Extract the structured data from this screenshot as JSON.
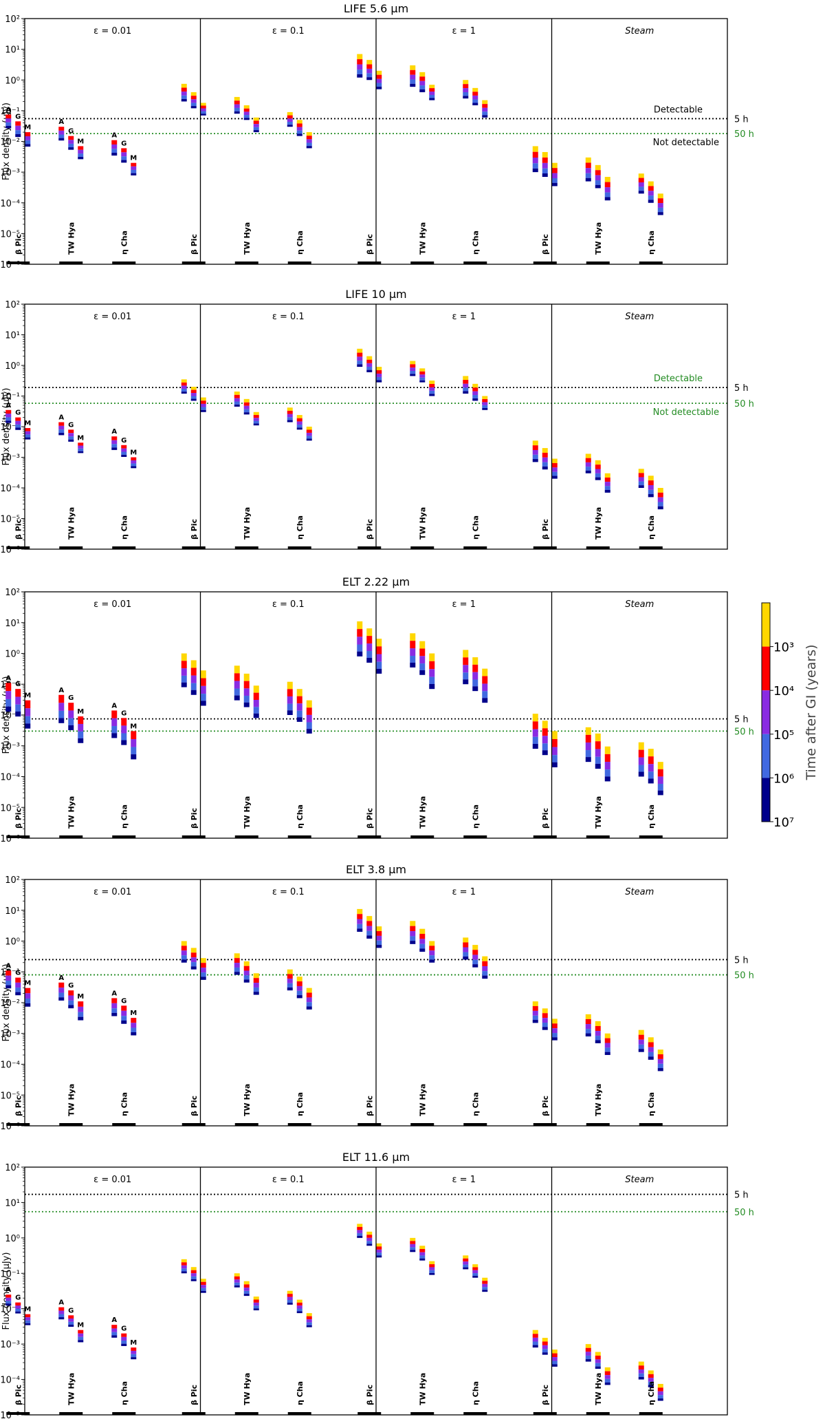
{
  "figure": {
    "ylabel": "Flux density (μJy)",
    "colorbar": {
      "label": "Time after GI (years)",
      "ticks": [
        "10³",
        "10⁴",
        "10⁵",
        "10⁶",
        "10⁷"
      ],
      "bands": [
        {
          "name": "< 10^3",
          "color": "#FFD700"
        },
        {
          "name": "10^3-10^4",
          "color": "#FF0000"
        },
        {
          "name": "10^4-10^5",
          "color": "#8A2BE2"
        },
        {
          "name": "10^5-10^6",
          "color": "#4169E1"
        },
        {
          "name": "10^6-10^7",
          "color": "#00008B"
        }
      ]
    },
    "column_titles": [
      "ε = 0.01",
      "ε = 0.1",
      "ε = 1",
      "Steam"
    ],
    "groups": [
      "β Pic",
      "TW Hya",
      "η Cha"
    ],
    "star_types": [
      "A",
      "G",
      "M"
    ]
  },
  "chart_data": [
    {
      "type": "bar",
      "title": "LIFE 5.6 μm",
      "ylim_exp": [
        -6,
        2
      ],
      "yticks": [
        "10⁻⁶",
        "10⁻⁵",
        "10⁻⁴",
        "10⁻³",
        "10⁻²",
        "10⁻¹",
        "10⁰",
        "10¹",
        "10²"
      ],
      "thresholds": [
        {
          "label": "5 h",
          "value": 0.055,
          "color": "#000000"
        },
        {
          "label": "50 h",
          "value": 0.018,
          "color": "#228B22"
        }
      ],
      "annotations": [
        "Detectable",
        "Not detectable"
      ],
      "annotation_color": "#000000",
      "columns": [
        [
          [
            0.075,
            0.02
          ],
          [
            0.045,
            0.01
          ],
          [
            0.02,
            0.005
          ],
          [
            0.03,
            0.008
          ],
          [
            0.015,
            0.004
          ],
          [
            0.007,
            0.002
          ],
          [
            0.011,
            0.0025
          ],
          [
            0.006,
            0.0015
          ],
          [
            0.002,
            0.0006
          ]
        ],
        [
          [
            0.75,
            0.2
          ],
          [
            0.4,
            0.12
          ],
          [
            0.18,
            0.07
          ],
          [
            0.28,
            0.08
          ],
          [
            0.15,
            0.05
          ],
          [
            0.06,
            0.02
          ],
          [
            0.09,
            0.03
          ],
          [
            0.05,
            0.015
          ],
          [
            0.02,
            0.006
          ]
        ],
        [
          [
            7,
            1.2
          ],
          [
            4.5,
            1
          ],
          [
            2,
            0.5
          ],
          [
            3,
            0.6
          ],
          [
            1.8,
            0.4
          ],
          [
            0.7,
            0.22
          ],
          [
            1,
            0.25
          ],
          [
            0.55,
            0.15
          ],
          [
            0.22,
            0.06
          ]
        ],
        [
          [
            0.007,
            0.001
          ],
          [
            0.0045,
            0.0007
          ],
          [
            0.002,
            0.00035
          ],
          [
            0.003,
            0.0005
          ],
          [
            0.0017,
            0.0003
          ],
          [
            0.0007,
            0.00012
          ],
          [
            0.0009,
            0.0002
          ],
          [
            0.0005,
            0.0001
          ],
          [
            0.0002,
            4e-05
          ]
        ]
      ]
    },
    {
      "type": "bar",
      "title": "LIFE 10 μm",
      "ylim_exp": [
        -6,
        2
      ],
      "yticks": [
        "10⁻⁶",
        "10⁻⁵",
        "10⁻⁴",
        "10⁻³",
        "10⁻²",
        "10⁻¹",
        "10⁰",
        "10¹",
        "10²"
      ],
      "thresholds": [
        {
          "label": "5 h",
          "value": 0.19,
          "color": "#000000"
        },
        {
          "label": "50 h",
          "value": 0.058,
          "color": "#228B22"
        }
      ],
      "annotations": [
        "Detectable",
        "Not detectable"
      ],
      "annotation_color": "#228B22",
      "columns": [
        [
          [
            0.035,
            0.01
          ],
          [
            0.02,
            0.006
          ],
          [
            0.009,
            0.003
          ],
          [
            0.014,
            0.004
          ],
          [
            0.008,
            0.0025
          ],
          [
            0.003,
            0.0011
          ],
          [
            0.0048,
            0.0013
          ],
          [
            0.0025,
            0.0008
          ],
          [
            0.001,
            0.00035
          ]
        ],
        [
          [
            0.35,
            0.12
          ],
          [
            0.2,
            0.07
          ],
          [
            0.09,
            0.03
          ],
          [
            0.14,
            0.045
          ],
          [
            0.08,
            0.025
          ],
          [
            0.03,
            0.011
          ],
          [
            0.042,
            0.014
          ],
          [
            0.024,
            0.008
          ],
          [
            0.01,
            0.0035
          ]
        ],
        [
          [
            3.5,
            0.9
          ],
          [
            2,
            0.6
          ],
          [
            0.9,
            0.28
          ],
          [
            1.4,
            0.45
          ],
          [
            0.8,
            0.28
          ],
          [
            0.32,
            0.1
          ],
          [
            0.45,
            0.12
          ],
          [
            0.25,
            0.07
          ],
          [
            0.1,
            0.035
          ]
        ],
        [
          [
            0.0035,
            0.0007
          ],
          [
            0.002,
            0.0004
          ],
          [
            0.0009,
            0.0002
          ],
          [
            0.0013,
            0.0003
          ],
          [
            0.0008,
            0.00018
          ],
          [
            0.0003,
            7e-05
          ],
          [
            0.00042,
            0.0001
          ],
          [
            0.00025,
            5e-05
          ],
          [
            0.0001,
            2e-05
          ]
        ]
      ]
    },
    {
      "type": "bar",
      "title": "ELT 2.22 μm",
      "ylim_exp": [
        -6,
        2
      ],
      "yticks": [
        "10⁻⁶",
        "10⁻⁵",
        "10⁻⁴",
        "10⁻³",
        "10⁻²",
        "10⁻¹",
        "10⁰",
        "10¹",
        "10²"
      ],
      "thresholds": [
        {
          "label": "5 h",
          "value": 0.0075,
          "color": "#000000"
        },
        {
          "label": "50 h",
          "value": 0.003,
          "color": "#228B22"
        }
      ],
      "annotations": [],
      "annotation_color": "#000000",
      "columns": [
        [
          [
            0.11,
            0.007
          ],
          [
            0.07,
            0.005
          ],
          [
            0.03,
            0.002
          ],
          [
            0.045,
            0.003
          ],
          [
            0.025,
            0.0018
          ],
          [
            0.009,
            0.0007
          ],
          [
            0.014,
            0.001
          ],
          [
            0.008,
            0.0006
          ],
          [
            0.003,
            0.0002
          ]
        ],
        [
          [
            1,
            0.08
          ],
          [
            0.6,
            0.045
          ],
          [
            0.28,
            0.02
          ],
          [
            0.4,
            0.03
          ],
          [
            0.22,
            0.018
          ],
          [
            0.09,
            0.008
          ],
          [
            0.12,
            0.01
          ],
          [
            0.07,
            0.006
          ],
          [
            0.03,
            0.0025
          ]
        ],
        [
          [
            11,
            0.8
          ],
          [
            6.5,
            0.5
          ],
          [
            3,
            0.22
          ],
          [
            4.5,
            0.35
          ],
          [
            2.5,
            0.2
          ],
          [
            1,
            0.07
          ],
          [
            1.3,
            0.1
          ],
          [
            0.75,
            0.06
          ],
          [
            0.32,
            0.025
          ]
        ],
        [
          [
            0.011,
            0.0008
          ],
          [
            0.0065,
            0.0005
          ],
          [
            0.003,
            0.0002
          ],
          [
            0.004,
            0.0003
          ],
          [
            0.0025,
            0.00018
          ],
          [
            0.00095,
            7e-05
          ],
          [
            0.0013,
            0.0001
          ],
          [
            0.0008,
            6e-05
          ],
          [
            0.0003,
            2.5e-05
          ]
        ]
      ]
    },
    {
      "type": "bar",
      "title": "ELT 3.8 μm",
      "ylim_exp": [
        -6,
        2
      ],
      "yticks": [
        "10⁻⁶",
        "10⁻⁵",
        "10⁻⁴",
        "10⁻³",
        "10⁻²",
        "10⁻¹",
        "10⁰",
        "10¹",
        "10²"
      ],
      "thresholds": [
        {
          "label": "5 h",
          "value": 0.25,
          "color": "#000000"
        },
        {
          "label": "50 h",
          "value": 0.08,
          "color": "#228B22"
        }
      ],
      "annotations": [],
      "annotation_color": "#000000",
      "columns": [
        [
          [
            0.11,
            0.02
          ],
          [
            0.065,
            0.012
          ],
          [
            0.03,
            0.005
          ],
          [
            0.045,
            0.008
          ],
          [
            0.025,
            0.0045
          ],
          [
            0.011,
            0.0018
          ],
          [
            0.014,
            0.0025
          ],
          [
            0.008,
            0.0014
          ],
          [
            0.0032,
            0.0006
          ]
        ],
        [
          [
            1,
            0.2
          ],
          [
            0.6,
            0.12
          ],
          [
            0.28,
            0.055
          ],
          [
            0.4,
            0.08
          ],
          [
            0.22,
            0.045
          ],
          [
            0.09,
            0.018
          ],
          [
            0.12,
            0.025
          ],
          [
            0.07,
            0.014
          ],
          [
            0.03,
            0.006
          ]
        ],
        [
          [
            11,
            2
          ],
          [
            6.5,
            1.2
          ],
          [
            3,
            0.6
          ],
          [
            4.5,
            0.8
          ],
          [
            2.5,
            0.45
          ],
          [
            1,
            0.2
          ],
          [
            1.3,
            0.25
          ],
          [
            0.75,
            0.14
          ],
          [
            0.32,
            0.06
          ]
        ],
        [
          [
            0.011,
            0.0022
          ],
          [
            0.0065,
            0.0013
          ],
          [
            0.003,
            0.0006
          ],
          [
            0.0042,
            0.0008
          ],
          [
            0.0025,
            0.00048
          ],
          [
            0.001,
            0.0002
          ],
          [
            0.0013,
            0.00025
          ],
          [
            0.00075,
            0.00014
          ],
          [
            0.0003,
            6e-05
          ]
        ]
      ]
    },
    {
      "type": "bar",
      "title": "ELT 11.6 μm",
      "ylim_exp": [
        -5,
        2
      ],
      "yticks": [
        "10⁻⁵",
        "10⁻⁴",
        "10⁻³",
        "10⁻²",
        "10⁻¹",
        "10⁰",
        "10¹",
        "10²"
      ],
      "thresholds": [
        {
          "label": "5 h",
          "value": 17,
          "color": "#000000"
        },
        {
          "label": "50 h",
          "value": 5.5,
          "color": "#228B22"
        }
      ],
      "annotations": [],
      "annotation_color": "#000000",
      "columns": [
        [
          [
            0.025,
            0.01
          ],
          [
            0.015,
            0.006
          ],
          [
            0.007,
            0.0028
          ],
          [
            0.011,
            0.004
          ],
          [
            0.0065,
            0.0025
          ],
          [
            0.0025,
            0.0009
          ],
          [
            0.0035,
            0.0012
          ],
          [
            0.002,
            0.0007
          ],
          [
            0.0008,
            0.0003
          ]
        ],
        [
          [
            0.25,
            0.1
          ],
          [
            0.15,
            0.06
          ],
          [
            0.07,
            0.028
          ],
          [
            0.1,
            0.04
          ],
          [
            0.06,
            0.023
          ],
          [
            0.022,
            0.009
          ],
          [
            0.032,
            0.013
          ],
          [
            0.018,
            0.0075
          ],
          [
            0.0075,
            0.003
          ]
        ],
        [
          [
            2.5,
            1
          ],
          [
            1.5,
            0.6
          ],
          [
            0.7,
            0.28
          ],
          [
            1,
            0.4
          ],
          [
            0.6,
            0.23
          ],
          [
            0.22,
            0.09
          ],
          [
            0.32,
            0.13
          ],
          [
            0.18,
            0.075
          ],
          [
            0.075,
            0.03
          ]
        ],
        [
          [
            0.0025,
            0.0008
          ],
          [
            0.0015,
            0.0005
          ],
          [
            0.0007,
            0.00023
          ],
          [
            0.001,
            0.00032
          ],
          [
            0.0006,
            0.0002
          ],
          [
            0.00022,
            7e-05
          ],
          [
            0.00032,
            0.0001
          ],
          [
            0.00018,
            6e-05
          ],
          [
            7.5e-05,
            2.5e-05
          ]
        ]
      ]
    }
  ]
}
